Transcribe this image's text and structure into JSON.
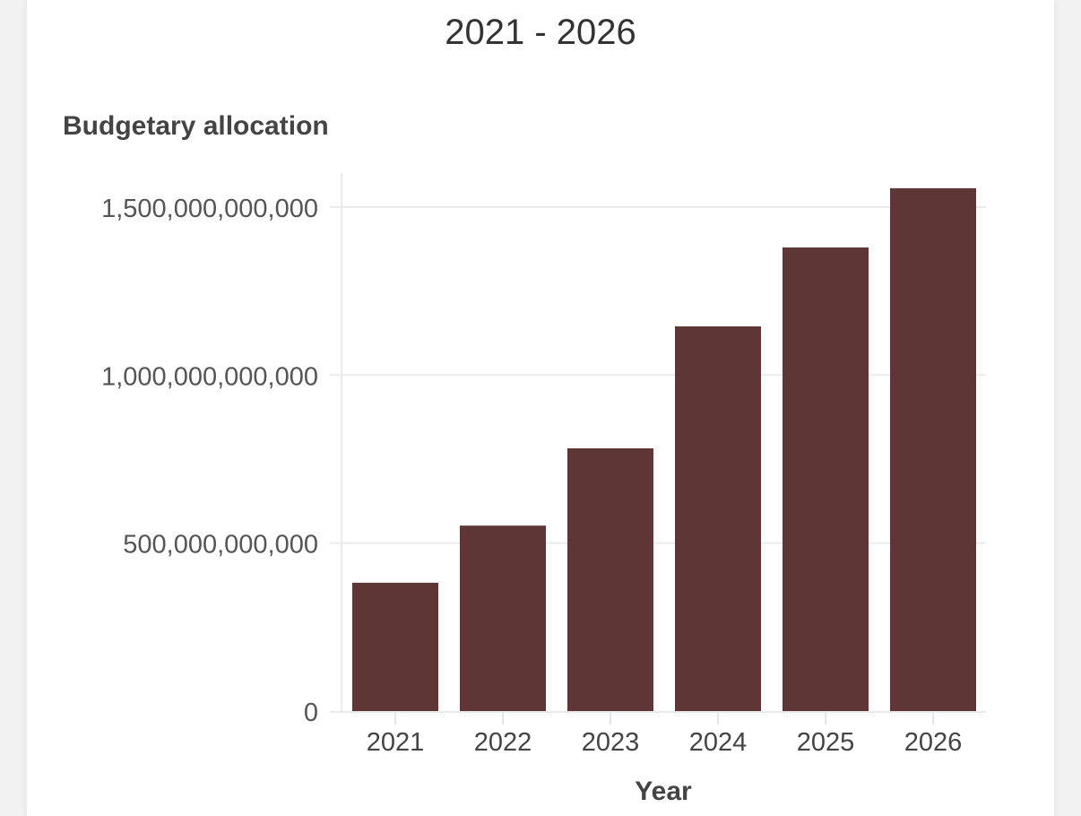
{
  "chart_data": {
    "type": "bar",
    "title": "2021 - 2026",
    "xlabel": "Year",
    "ylabel": "Budgetary allocation",
    "categories": [
      "2021",
      "2022",
      "2023",
      "2024",
      "2025",
      "2026"
    ],
    "values": [
      382000000000,
      552000000000,
      782000000000,
      1145000000000,
      1380000000000,
      1556000000000
    ],
    "ylim": [
      0,
      1600000000000
    ],
    "yticks": [
      0,
      500000000000,
      1000000000000,
      1500000000000
    ],
    "ytick_labels": [
      "0",
      "500,000,000,000",
      "1,000,000,000,000",
      "1,500,000,000,000"
    ],
    "grid": true,
    "bar_color": "#5e3636"
  }
}
